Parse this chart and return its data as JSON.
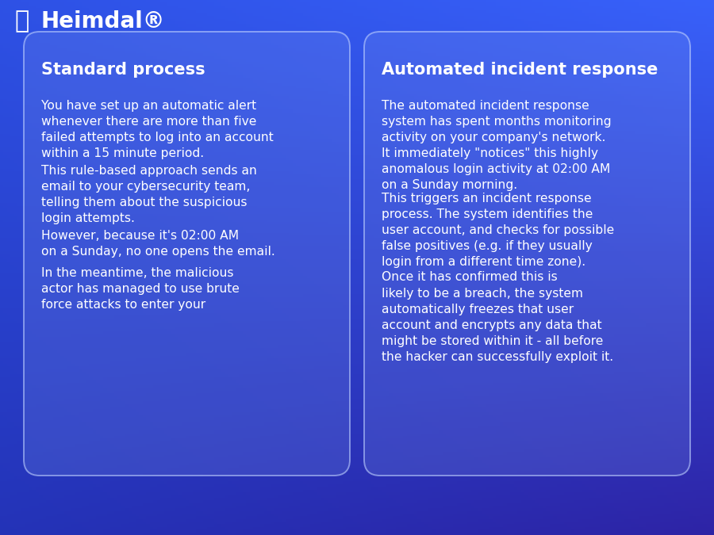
{
  "logo_text": "Heimdal®",
  "text_color": "#ffffff",
  "left_card": {
    "title": "Standard process",
    "paragraphs": [
      "You have set up an automatic alert\nwhenever there are more than five\nfailed attempts to log into an account\nwithin a 15 minute period.",
      "This rule-based approach sends an\nemail to your cybersecurity team,\ntelling them about the suspicious\nlogin attempts.",
      "However, because it's 02:00 AM\non a Sunday, no one opens the email.",
      "In the meantime, the malicious\nactor has managed to use brute\nforce attacks to enter your"
    ]
  },
  "right_card": {
    "title": "Automated incident response",
    "paragraphs": [
      "The automated incident response\nsystem has spent months monitoring\nactivity on your company's network.\nIt immediately \"notices\" this highly\nanomalous login activity at 02:00 AM\non a Sunday morning.",
      "This triggers an incident response\nprocess. The system identifies the\nuser account, and checks for possible\nfalse positives (e.g. if they usually\nlogin from a different time zone).",
      "Once it has confirmed this is\nlikely to be a breach, the system\nautomatically freezes that user\naccount and encrypts any data that\nmight be stored within it - all before\nthe hacker can successfully exploit it."
    ]
  },
  "title_fontsize": 15,
  "body_fontsize": 11.2,
  "logo_fontsize": 20,
  "bg_corners": {
    "tl": [
      0.18,
      0.32,
      0.9
    ],
    "tr": [
      0.22,
      0.38,
      0.98
    ],
    "bl": [
      0.14,
      0.2,
      0.72
    ],
    "br": [
      0.18,
      0.14,
      0.65
    ]
  },
  "card_face": [
    0.55,
    0.65,
    0.95,
    0.18
  ],
  "card_edge": [
    0.75,
    0.82,
    1.0,
    0.6
  ]
}
